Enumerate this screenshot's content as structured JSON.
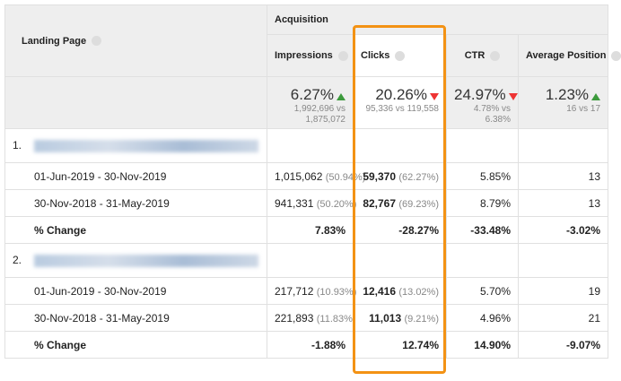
{
  "header": {
    "landing_page": "Landing Page",
    "acquisition": "Acquisition",
    "columns": [
      "Impressions",
      "Clicks",
      "CTR",
      "Average Position"
    ]
  },
  "summary": [
    {
      "value": "6.27%",
      "trend": "up",
      "detail": "1,992,696 vs 1,875,072"
    },
    {
      "value": "20.26%",
      "trend": "down",
      "detail": "95,336 vs 119,558"
    },
    {
      "value": "24.97%",
      "trend": "down",
      "detail": "4.78% vs 6.38%"
    },
    {
      "value": "1.23%",
      "trend": "up",
      "detail": "16 vs 17"
    }
  ],
  "groups": [
    {
      "index": "1.",
      "rows": [
        {
          "label": "01-Jun-2019 - 30-Nov-2019",
          "cells": [
            [
              "1,015,062",
              "(50.94%)"
            ],
            [
              "59,370",
              "(62.27%)"
            ],
            [
              "5.85%"
            ],
            [
              "13"
            ]
          ]
        },
        {
          "label": "30-Nov-2018 - 31-May-2019",
          "cells": [
            [
              "941,331",
              "(50.20%)"
            ],
            [
              "82,767",
              "(69.23%)"
            ],
            [
              "8.79%"
            ],
            [
              "13"
            ]
          ]
        }
      ],
      "change": {
        "label": "% Change",
        "cells": [
          "7.83%",
          "-28.27%",
          "-33.48%",
          "-3.02%"
        ]
      }
    },
    {
      "index": "2.",
      "rows": [
        {
          "label": "01-Jun-2019 - 30-Nov-2019",
          "cells": [
            [
              "217,712",
              "(10.93%)"
            ],
            [
              "12,416",
              "(13.02%)"
            ],
            [
              "5.70%"
            ],
            [
              "19"
            ]
          ]
        },
        {
          "label": "30-Nov-2018 - 31-May-2019",
          "cells": [
            [
              "221,893",
              "(11.83%)"
            ],
            [
              "11,013",
              "(9.21%)"
            ],
            [
              "4.96%"
            ],
            [
              "21"
            ]
          ]
        }
      ],
      "change": {
        "label": "% Change",
        "cells": [
          "-1.88%",
          "12.74%",
          "14.90%",
          "-9.07%"
        ]
      }
    }
  ]
}
